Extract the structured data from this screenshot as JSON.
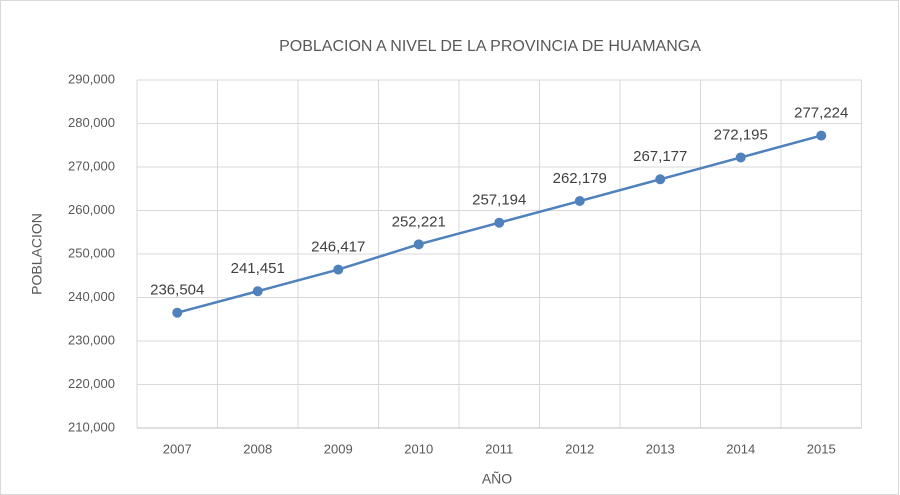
{
  "chart_data": {
    "type": "line",
    "title": "POBLACION A NIVEL DE LA PROVINCIA DE HUAMANGA",
    "x_label": "AÑO",
    "y_label": "POBLACION",
    "categories": [
      "2007",
      "2008",
      "2009",
      "2010",
      "2011",
      "2012",
      "2013",
      "2014",
      "2015"
    ],
    "series": [
      {
        "name": "POBLACION",
        "color": "#4f81bd",
        "values": [
          236504,
          241451,
          246417,
          252221,
          257194,
          262179,
          267177,
          272195,
          277224
        ],
        "value_labels": [
          "236,504",
          "241,451",
          "246,417",
          "252,221",
          "257,194",
          "262,179",
          "267,177",
          "272,195",
          "277,224"
        ]
      }
    ],
    "ylim": [
      210000,
      290000
    ],
    "yticks": [
      {
        "value": 210000,
        "label": "210,000"
      },
      {
        "value": 220000,
        "label": "220,000"
      },
      {
        "value": 230000,
        "label": "230,000"
      },
      {
        "value": 240000,
        "label": "240,000"
      },
      {
        "value": 250000,
        "label": "250,000"
      },
      {
        "value": 260000,
        "label": "260,000"
      },
      {
        "value": 270000,
        "label": "270,000"
      },
      {
        "value": 280000,
        "label": "280,000"
      },
      {
        "value": 290000,
        "label": "290,000"
      }
    ],
    "grid": true
  }
}
